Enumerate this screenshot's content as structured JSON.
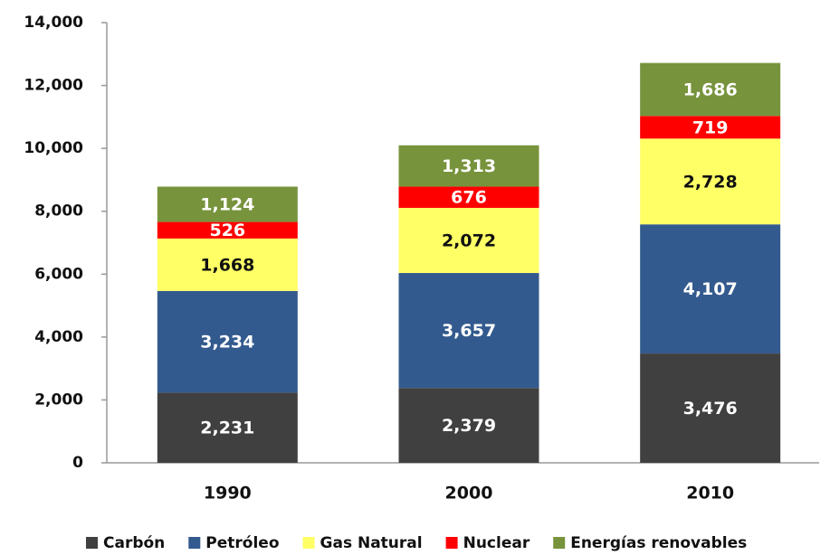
{
  "chart_data": {
    "type": "stacked_bar",
    "categories": [
      "1990",
      "2000",
      "2010"
    ],
    "series": [
      {
        "name": "Carbón",
        "color": "#404040",
        "label_color": "#ffffff",
        "values": [
          2231,
          2379,
          3476
        ],
        "value_labels": [
          "2,231",
          "2,379",
          "3,476"
        ]
      },
      {
        "name": "Petróleo",
        "color": "#335a8e",
        "label_color": "#ffffff",
        "values": [
          3234,
          3657,
          4107
        ],
        "value_labels": [
          "3,234",
          "3,657",
          "4,107"
        ]
      },
      {
        "name": "Gas Natural",
        "color": "#ffff66",
        "label_color": "#111111",
        "values": [
          1668,
          2072,
          2728
        ],
        "value_labels": [
          "1,668",
          "2,072",
          "2,728"
        ]
      },
      {
        "name": "Nuclear",
        "color": "#ff0000",
        "label_color": "#ffffff",
        "values": [
          526,
          676,
          719
        ],
        "value_labels": [
          "526",
          "676",
          "719"
        ]
      },
      {
        "name": "Energías renovables",
        "color": "#77933c",
        "label_color": "#ffffff",
        "values": [
          1124,
          1313,
          1686
        ],
        "value_labels": [
          "1,124",
          "1,313",
          "1,686"
        ]
      }
    ],
    "ylim": [
      0,
      14000
    ],
    "yticks": [
      0,
      {
        "value": 2000,
        "label": "2,000"
      },
      {
        "value": 4000,
        "label": "4,000"
      },
      {
        "value": 6000,
        "label": "6,000"
      },
      {
        "value": 8000,
        "label": "8,000"
      },
      {
        "value": 10000,
        "label": "10,000"
      },
      {
        "value": 12000,
        "label": "12,000"
      },
      {
        "value": 14000,
        "label": "14,000"
      }
    ],
    "legend": "bottom",
    "grid": false
  }
}
